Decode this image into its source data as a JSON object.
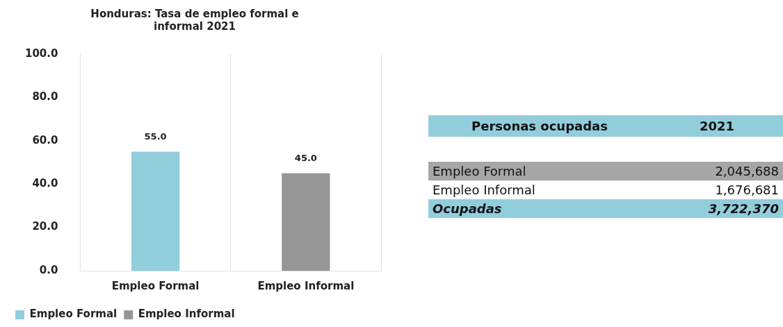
{
  "chart_data": [
    {
      "type": "bar",
      "title": "Honduras: Tasa de empleo formal e informal 2021",
      "categories": [
        "Empleo Formal",
        "Empleo Informal"
      ],
      "series": [
        {
          "name": "Empleo Formal",
          "color": "#92cddc",
          "values": [
            55.0,
            null
          ],
          "value_labels": [
            "55.0",
            null
          ]
        },
        {
          "name": "Empleo Informal",
          "color": "#969696",
          "values": [
            null,
            45.0
          ],
          "value_labels": [
            null,
            "45.0"
          ]
        }
      ],
      "ylim": [
        0,
        100
      ],
      "yticks": [
        {
          "value": 0,
          "label": "0.0"
        },
        {
          "value": 20,
          "label": "20.0"
        },
        {
          "value": 40,
          "label": "40.0"
        },
        {
          "value": 60,
          "label": "60.0"
        },
        {
          "value": 80,
          "label": "80.0"
        },
        {
          "value": 100,
          "label": "100.0"
        }
      ],
      "grid": "x",
      "legend": "bottom left"
    },
    {
      "type": "other",
      "title": "Personas ocupadas",
      "categories": [
        "Empleo Formal",
        "Empleo Informal",
        "Ocupadas"
      ],
      "colors": [
        "#a6a6a6",
        "#ffffff",
        "#92cddc"
      ],
      "series": [
        {
          "name": "2021",
          "values": [
            2045688,
            1676681,
            3722370
          ],
          "value_labels": [
            "2,045,688",
            "1,676,681",
            "3,722,370"
          ]
        }
      ]
    }
  ]
}
